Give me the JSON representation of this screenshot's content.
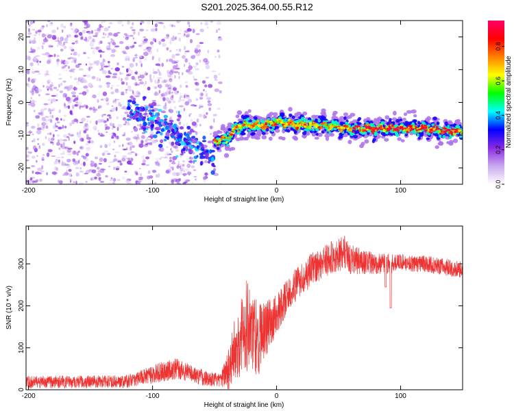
{
  "title": "S201.2025.364.00.55.R12",
  "charts": [
    {
      "type": "heatmap",
      "xlabel": "Height of straight line (km)",
      "ylabel": "Frequency (Hz)",
      "xlim": [
        -202,
        150
      ],
      "ylim": [
        -25,
        25
      ],
      "xticks": [
        -200,
        -100,
        0,
        100
      ],
      "yticks": [
        -20,
        -10,
        0,
        10,
        20
      ],
      "features": [
        {
          "description": "scattered weak purple speckle noise",
          "x_range": [
            -202,
            -45
          ],
          "freq_range": [
            -25,
            25
          ],
          "amplitude": 0.2
        },
        {
          "description": "descending signal trace",
          "x": [
            -120,
            -100,
            -80,
            -65,
            -50
          ],
          "freq": [
            -1,
            -6,
            -10,
            -14,
            -17
          ],
          "amplitude": 0.3
        },
        {
          "description": "strong narrow-band signal",
          "x": [
            -50,
            -40,
            -30,
            -20,
            -10,
            0,
            20,
            40,
            60,
            80,
            100,
            120,
            150
          ],
          "freq": [
            -12,
            -11,
            -7,
            -7,
            -7,
            -6,
            -7,
            -7,
            -8,
            -8,
            -8,
            -8,
            -9
          ],
          "amplitude": 0.9
        }
      ]
    },
    {
      "type": "line",
      "xlabel": "Height of straight line (km)",
      "ylabel": "SNR (10 * v/v)",
      "xlim": [
        -202,
        150
      ],
      "ylim": [
        0,
        390
      ],
      "xticks": [
        -200,
        -100,
        0,
        100
      ],
      "yticks": [
        0,
        100,
        200,
        300
      ],
      "color": "#ee3333",
      "envelope": {
        "x": [
          -202,
          -120,
          -90,
          -80,
          -60,
          -45,
          -38,
          -30,
          -25,
          -20,
          -15,
          -10,
          0,
          10,
          20,
          30,
          40,
          50,
          55,
          60,
          70,
          80,
          90,
          100,
          110,
          120,
          130,
          140,
          150
        ],
        "mean": [
          18,
          20,
          45,
          50,
          30,
          22,
          60,
          120,
          160,
          140,
          120,
          140,
          180,
          230,
          265,
          290,
          310,
          320,
          330,
          310,
          305,
          300,
          300,
          305,
          300,
          300,
          295,
          290,
          285
        ],
        "spread": [
          15,
          15,
          25,
          25,
          20,
          15,
          60,
          90,
          110,
          120,
          90,
          70,
          50,
          40,
          40,
          40,
          40,
          40,
          40,
          35,
          30,
          25,
          25,
          20,
          20,
          20,
          20,
          20,
          20
        ]
      },
      "dips": [
        {
          "x": 92,
          "y": 195
        },
        {
          "x": 88,
          "y": 245
        }
      ]
    }
  ],
  "colorbar": {
    "label": "Normalized spectral amplitude",
    "range": [
      0.0,
      0.95
    ],
    "ticks": [
      "0.0",
      "0.2",
      "0.4",
      "0.6",
      "0.8"
    ],
    "tick_values": [
      0.0,
      0.2,
      0.4,
      0.6,
      0.8
    ],
    "colors": [
      "#ffffff",
      "#c9a9f0",
      "#8a2be2",
      "#0000ff",
      "#00ffff",
      "#00ff00",
      "#ffff00",
      "#ff8000",
      "#ff0000",
      "#ff0066"
    ]
  }
}
